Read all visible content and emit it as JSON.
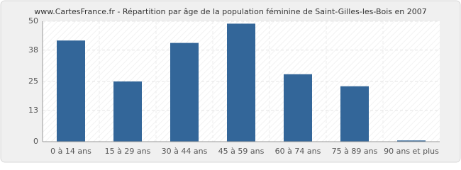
{
  "chart_data": {
    "type": "bar",
    "title": "www.CartesFrance.fr - Répartition par âge de la population féminine de Saint-Gilles-les-Bois en 2007",
    "categories": [
      "0 à 14 ans",
      "15 à 29 ans",
      "30 à 44 ans",
      "45 à 59 ans",
      "60 à 74 ans",
      "75 à 89 ans",
      "90 ans et plus"
    ],
    "values": [
      42,
      25,
      41,
      49,
      28,
      23,
      0.5
    ],
    "color": "#336699",
    "ylim": [
      0,
      50
    ],
    "yticks": [
      0,
      13,
      25,
      38,
      50
    ],
    "grid": true
  }
}
